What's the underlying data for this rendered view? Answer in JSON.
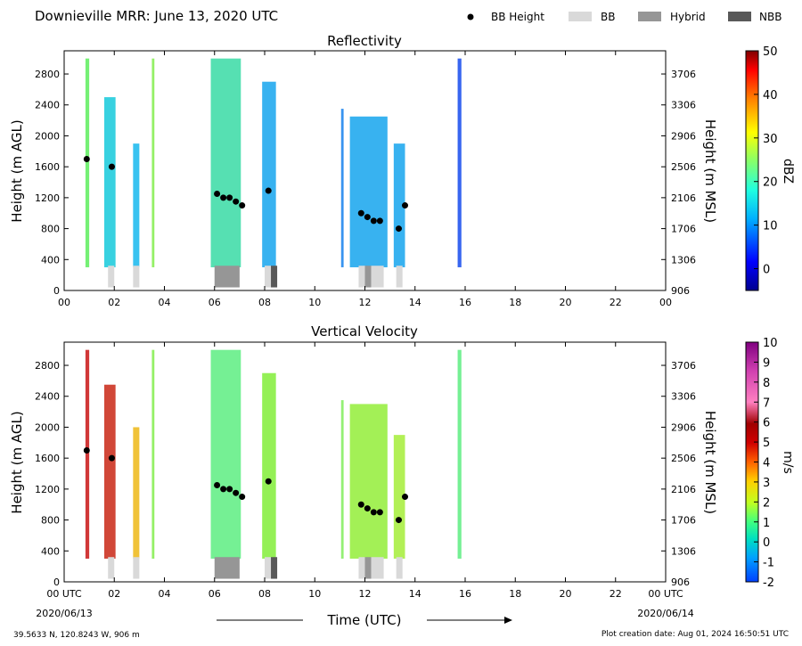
{
  "header": {
    "title": "Downieville MRR:  June 13, 2020 UTC",
    "legend": [
      {
        "label": "BB Height",
        "kind": "dot",
        "color": "#000000"
      },
      {
        "label": "BB",
        "kind": "box",
        "color": "#d9d9d9"
      },
      {
        "label": "Hybrid",
        "kind": "box",
        "color": "#969696"
      },
      {
        "label": "NBB",
        "kind": "box",
        "color": "#595959"
      }
    ]
  },
  "footer": {
    "location": "39.5633 N, 120.8243 W, 906 m",
    "created": "Plot creation date: Aug 01, 2024 16:50:51 UTC",
    "start_date": "2020/06/13",
    "end_date": "2020/06/14",
    "xlabel": "Time (UTC)"
  },
  "chart_data": [
    {
      "type": "heatmap",
      "title": "Reflectivity",
      "ylabel": "Height (m AGL)",
      "ylabel_right": "Height (m MSL)",
      "ylim": [
        0,
        3100
      ],
      "xlim": [
        0,
        24
      ],
      "x_ticks": [
        "00",
        "02",
        "04",
        "06",
        "08",
        "10",
        "12",
        "14",
        "16",
        "18",
        "20",
        "22",
        "00"
      ],
      "y_ticks": [
        0,
        400,
        800,
        1200,
        1600,
        2000,
        2400,
        2800
      ],
      "y_ticks_right": [
        906,
        1306,
        1706,
        2106,
        2506,
        2906,
        3306,
        3706
      ],
      "colorbar": {
        "label": "dBZ",
        "ticks": [
          "50",
          "40",
          "30",
          "20",
          "10",
          "0"
        ],
        "range": [
          -5,
          50
        ]
      },
      "precip": [
        {
          "start": 0.85,
          "end": 1.0,
          "top": 3000,
          "color": "#66ee66"
        },
        {
          "start": 1.6,
          "end": 2.05,
          "top": 2500,
          "color": "#22ccdd"
        },
        {
          "start": 2.75,
          "end": 3.0,
          "top": 1900,
          "color": "#22bbee"
        },
        {
          "start": 3.5,
          "end": 3.6,
          "top": 3000,
          "color": "#88ee55"
        },
        {
          "start": 5.85,
          "end": 7.05,
          "top": 3000,
          "color": "#44ddaa"
        },
        {
          "start": 7.9,
          "end": 8.45,
          "top": 2700,
          "color": "#22aaee"
        },
        {
          "start": 11.05,
          "end": 11.15,
          "top": 2350,
          "color": "#2288ee"
        },
        {
          "start": 11.4,
          "end": 12.9,
          "top": 2250,
          "color": "#22aaee"
        },
        {
          "start": 13.15,
          "end": 13.6,
          "top": 1900,
          "color": "#22aaee"
        },
        {
          "start": 15.7,
          "end": 15.85,
          "top": 3000,
          "color": "#2255ee"
        }
      ],
      "bb_height": [
        {
          "x": 0.9,
          "y": 1700
        },
        {
          "x": 1.9,
          "y": 1600
        },
        {
          "x": 6.1,
          "y": 1250
        },
        {
          "x": 6.35,
          "y": 1200
        },
        {
          "x": 6.6,
          "y": 1200
        },
        {
          "x": 6.85,
          "y": 1150
        },
        {
          "x": 7.1,
          "y": 1100
        },
        {
          "x": 8.15,
          "y": 1290
        },
        {
          "x": 11.85,
          "y": 1000
        },
        {
          "x": 12.1,
          "y": 950
        },
        {
          "x": 12.35,
          "y": 900
        },
        {
          "x": 12.6,
          "y": 900
        },
        {
          "x": 13.35,
          "y": 800
        },
        {
          "x": 13.6,
          "y": 1100
        }
      ],
      "bb_class": [
        {
          "start": 1.75,
          "end": 2.0,
          "class": "BB"
        },
        {
          "start": 2.75,
          "end": 3.0,
          "class": "BB"
        },
        {
          "start": 6.0,
          "end": 7.0,
          "class": "Hybrid"
        },
        {
          "start": 8.0,
          "end": 8.25,
          "class": "BB"
        },
        {
          "start": 8.25,
          "end": 8.5,
          "class": "NBB"
        },
        {
          "start": 11.75,
          "end": 12.0,
          "class": "BB"
        },
        {
          "start": 12.0,
          "end": 12.25,
          "class": "Hybrid"
        },
        {
          "start": 12.25,
          "end": 12.75,
          "class": "BB"
        },
        {
          "start": 13.25,
          "end": 13.5,
          "class": "BB"
        }
      ]
    },
    {
      "type": "heatmap",
      "title": "Vertical Velocity",
      "ylabel": "Height (m AGL)",
      "ylabel_right": "Height (m MSL)",
      "ylim": [
        0,
        3100
      ],
      "xlim": [
        0,
        24
      ],
      "x_ticks": [
        "00 UTC",
        "02",
        "04",
        "06",
        "08",
        "10",
        "12",
        "14",
        "16",
        "18",
        "20",
        "22",
        "00 UTC"
      ],
      "y_ticks": [
        0,
        400,
        800,
        1200,
        1600,
        2000,
        2400,
        2800
      ],
      "y_ticks_right": [
        906,
        1306,
        1706,
        2106,
        2506,
        2906,
        3306,
        3706
      ],
      "colorbar": {
        "label": "m/s",
        "ticks": [
          "10",
          "9",
          "8",
          "7",
          "6",
          "5",
          "4",
          "3",
          "2",
          "1",
          "0",
          "-1",
          "-2"
        ],
        "range": [
          -2,
          10
        ]
      },
      "precip": [
        {
          "start": 0.85,
          "end": 1.0,
          "top": 3000,
          "color": "#cc2222"
        },
        {
          "start": 1.6,
          "end": 2.05,
          "top": 2550,
          "color": "#cc3322"
        },
        {
          "start": 2.75,
          "end": 3.0,
          "top": 2000,
          "color": "#eebb22"
        },
        {
          "start": 3.5,
          "end": 3.6,
          "top": 3000,
          "color": "#88ee55"
        },
        {
          "start": 5.85,
          "end": 7.05,
          "top": 3000,
          "color": "#66ee88"
        },
        {
          "start": 7.9,
          "end": 8.45,
          "top": 2700,
          "color": "#88ee44"
        },
        {
          "start": 11.05,
          "end": 11.15,
          "top": 2350,
          "color": "#88ee66"
        },
        {
          "start": 11.4,
          "end": 12.9,
          "top": 2300,
          "color": "#99ee44"
        },
        {
          "start": 13.15,
          "end": 13.6,
          "top": 1900,
          "color": "#aaee44"
        },
        {
          "start": 15.7,
          "end": 15.85,
          "top": 3000,
          "color": "#66ee88"
        }
      ],
      "bb_height": [
        {
          "x": 0.9,
          "y": 1700
        },
        {
          "x": 1.9,
          "y": 1600
        },
        {
          "x": 6.1,
          "y": 1250
        },
        {
          "x": 6.35,
          "y": 1200
        },
        {
          "x": 6.6,
          "y": 1200
        },
        {
          "x": 6.85,
          "y": 1150
        },
        {
          "x": 7.1,
          "y": 1100
        },
        {
          "x": 8.15,
          "y": 1300
        },
        {
          "x": 11.85,
          "y": 1000
        },
        {
          "x": 12.1,
          "y": 950
        },
        {
          "x": 12.35,
          "y": 900
        },
        {
          "x": 12.6,
          "y": 900
        },
        {
          "x": 13.35,
          "y": 800
        },
        {
          "x": 13.6,
          "y": 1100
        }
      ],
      "bb_class": [
        {
          "start": 1.75,
          "end": 2.0,
          "class": "BB"
        },
        {
          "start": 2.75,
          "end": 3.0,
          "class": "BB"
        },
        {
          "start": 6.0,
          "end": 7.0,
          "class": "Hybrid"
        },
        {
          "start": 8.0,
          "end": 8.25,
          "class": "BB"
        },
        {
          "start": 8.25,
          "end": 8.5,
          "class": "NBB"
        },
        {
          "start": 11.75,
          "end": 12.0,
          "class": "BB"
        },
        {
          "start": 12.0,
          "end": 12.25,
          "class": "Hybrid"
        },
        {
          "start": 12.25,
          "end": 12.75,
          "class": "BB"
        },
        {
          "start": 13.25,
          "end": 13.5,
          "class": "BB"
        }
      ]
    }
  ]
}
